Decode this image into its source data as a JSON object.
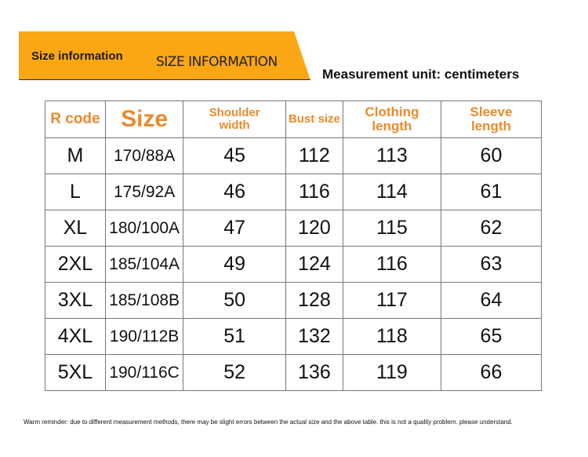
{
  "banner": {
    "title": "Size information",
    "subtitle": "SIZE INFORMATION",
    "color": "#FBA614"
  },
  "unit_label": "Measurement unit: centimeters",
  "table": {
    "headers": [
      "R code",
      "Size",
      "Shoulder width",
      "Bust size",
      "Clothing length",
      "Sleeve length"
    ],
    "header_color": "#EA8A2C",
    "rows": [
      [
        "M",
        "170/88A",
        "45",
        "112",
        "113",
        "60"
      ],
      [
        "L",
        "175/92A",
        "46",
        "116",
        "114",
        "61"
      ],
      [
        "XL",
        "180/100A",
        "47",
        "120",
        "115",
        "62"
      ],
      [
        "2XL",
        "185/104A",
        "49",
        "124",
        "116",
        "63"
      ],
      [
        "3XL",
        "185/108B",
        "50",
        "128",
        "117",
        "64"
      ],
      [
        "4XL",
        "190/112B",
        "51",
        "132",
        "118",
        "65"
      ],
      [
        "5XL",
        "190/116C",
        "52",
        "136",
        "119",
        "66"
      ]
    ]
  },
  "reminder": "Warm reminder: due to different measurement methods, there may be slight errors between the actual size and the above table. this is not a quality problem. please understand."
}
